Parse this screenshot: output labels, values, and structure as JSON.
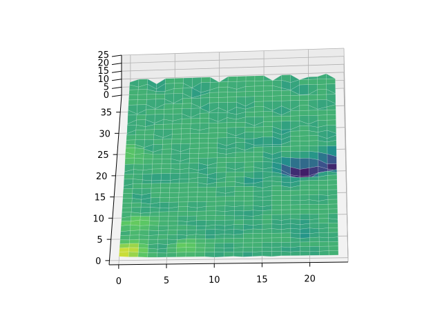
{
  "chart_data": {
    "type": "surface",
    "title": "",
    "xlabel": "",
    "ylabel": "",
    "zlabel": "",
    "colormap": "viridis",
    "view": "top-down 3D surface, slight elevation",
    "grid": true,
    "xlim": [
      -1,
      24
    ],
    "ylim": [
      -1,
      39
    ],
    "zlim": [
      0,
      25
    ],
    "x_ticks": [
      0,
      5,
      10,
      15,
      20
    ],
    "y_ticks": [
      0,
      5,
      10,
      15,
      20,
      25,
      30,
      35
    ],
    "z_ticks": [
      0,
      5,
      10,
      15,
      20,
      25
    ],
    "surface": {
      "x_range": [
        0,
        23
      ],
      "y_range": [
        0,
        37
      ],
      "typical_z": 16,
      "z_min": 0,
      "z_max": 25,
      "low_spots": [
        {
          "x": 19.5,
          "y": 19,
          "z": 0
        },
        {
          "x": 22.5,
          "y": 20.5,
          "z": 1
        },
        {
          "x": 18,
          "y": 19,
          "z": 8
        }
      ],
      "high_spots": [
        {
          "x": 0.5,
          "y": 0.5,
          "z": 25
        },
        {
          "x": 1.5,
          "y": 7.5,
          "z": 22
        },
        {
          "x": 1.5,
          "y": 2.5,
          "z": 21
        },
        {
          "x": 7.0,
          "y": 2.5,
          "z": 20
        },
        {
          "x": 0.5,
          "y": 22.0,
          "z": 20
        }
      ]
    }
  }
}
